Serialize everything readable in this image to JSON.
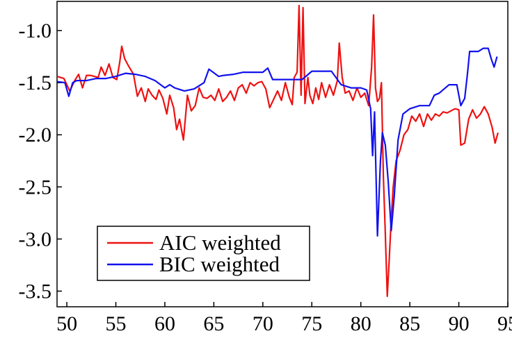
{
  "chart_data": {
    "type": "line",
    "title": "",
    "xlabel": "",
    "ylabel": "",
    "xlim": [
      49,
      95
    ],
    "ylim": [
      -3.65,
      -0.72
    ],
    "xticks": [
      50,
      55,
      60,
      65,
      70,
      75,
      80,
      85,
      90,
      95
    ],
    "yticks": [
      -1.0,
      -1.5,
      -2.0,
      -2.5,
      -3.0,
      -3.5
    ],
    "xtick_labels": [
      "50",
      "55",
      "60",
      "65",
      "70",
      "75",
      "80",
      "85",
      "90",
      "95"
    ],
    "ytick_labels": [
      "-1.0",
      "-1.5",
      "-2.0",
      "-2.5",
      "-3.0",
      "-3.5"
    ],
    "grid": false,
    "legend_position": "bottom-left",
    "series": [
      {
        "name": "AIC weighted",
        "color": "#ee1111",
        "x": [
          49.0,
          49.7,
          50.3,
          50.8,
          51.2,
          51.6,
          52.0,
          52.4,
          52.8,
          53.2,
          53.5,
          53.9,
          54.3,
          54.7,
          55.1,
          55.4,
          55.6,
          55.9,
          56.3,
          56.8,
          57.2,
          57.6,
          58.0,
          58.3,
          58.7,
          59.1,
          59.4,
          59.8,
          60.2,
          60.5,
          60.9,
          61.2,
          61.5,
          61.9,
          62.3,
          62.7,
          63.1,
          63.5,
          63.9,
          64.3,
          64.7,
          65.1,
          65.5,
          65.9,
          66.3,
          66.7,
          67.1,
          67.5,
          67.9,
          68.3,
          68.7,
          69.1,
          69.5,
          69.9,
          70.3,
          70.7,
          71.1,
          71.5,
          71.9,
          72.3,
          72.7,
          73.0,
          73.2,
          73.5,
          73.7,
          73.9,
          74.1,
          74.3,
          74.6,
          74.8,
          75.1,
          75.4,
          75.7,
          76.0,
          76.4,
          76.8,
          77.2,
          77.6,
          77.8,
          78.1,
          78.4,
          78.8,
          79.2,
          79.6,
          80.0,
          80.4,
          80.8,
          81.1,
          81.3,
          81.5,
          81.7,
          81.9,
          82.1,
          82.3,
          82.5,
          82.7,
          82.9,
          83.1,
          83.3,
          83.6,
          84.0,
          84.4,
          84.8,
          85.2,
          85.6,
          86.0,
          86.4,
          86.8,
          87.2,
          87.6,
          88.0,
          88.4,
          88.8,
          89.2,
          89.6,
          90.0,
          90.2,
          90.6,
          91.0,
          91.4,
          91.8,
          92.2,
          92.6,
          93.0,
          93.4,
          93.7,
          94.0
        ],
        "y": [
          -1.44,
          -1.46,
          -1.58,
          -1.48,
          -1.42,
          -1.55,
          -1.43,
          -1.43,
          -1.44,
          -1.45,
          -1.35,
          -1.43,
          -1.32,
          -1.45,
          -1.47,
          -1.3,
          -1.15,
          -1.27,
          -1.34,
          -1.42,
          -1.63,
          -1.55,
          -1.68,
          -1.56,
          -1.62,
          -1.66,
          -1.57,
          -1.65,
          -1.8,
          -1.62,
          -1.74,
          -1.95,
          -1.85,
          -2.05,
          -1.62,
          -1.77,
          -1.72,
          -1.55,
          -1.64,
          -1.65,
          -1.62,
          -1.67,
          -1.56,
          -1.68,
          -1.64,
          -1.58,
          -1.67,
          -1.55,
          -1.52,
          -1.6,
          -1.5,
          -1.53,
          -1.5,
          -1.49,
          -1.56,
          -1.74,
          -1.66,
          -1.58,
          -1.67,
          -1.5,
          -1.64,
          -1.71,
          -1.45,
          -1.4,
          -0.76,
          -1.62,
          -0.78,
          -1.7,
          -1.45,
          -1.62,
          -1.7,
          -1.55,
          -1.66,
          -1.5,
          -1.64,
          -1.52,
          -1.62,
          -1.48,
          -1.12,
          -1.45,
          -1.6,
          -1.58,
          -1.67,
          -1.55,
          -1.64,
          -1.6,
          -1.72,
          -1.35,
          -0.85,
          -1.55,
          -1.68,
          -1.65,
          -1.5,
          -2.4,
          -2.95,
          -3.55,
          -3.2,
          -2.8,
          -2.5,
          -2.25,
          -2.15,
          -2.0,
          -1.95,
          -1.82,
          -1.87,
          -1.8,
          -1.92,
          -1.8,
          -1.86,
          -1.8,
          -1.82,
          -1.78,
          -1.79,
          -1.77,
          -1.75,
          -1.76,
          -2.1,
          -2.08,
          -1.85,
          -1.76,
          -1.84,
          -1.8,
          -1.73,
          -1.8,
          -1.93,
          -2.08,
          -1.98
        ]
      },
      {
        "name": "BIC weighted",
        "color": "#1111ee",
        "x": [
          49.0,
          49.8,
          50.2,
          50.6,
          51.0,
          51.5,
          52.0,
          53.0,
          54.0,
          55.0,
          56.0,
          57.0,
          58.0,
          59.0,
          60.0,
          60.5,
          61.0,
          62.0,
          63.0,
          64.0,
          64.5,
          65.5,
          66.0,
          67.0,
          68.0,
          69.0,
          70.0,
          70.5,
          71.0,
          72.0,
          73.0,
          74.0,
          75.0,
          76.0,
          77.0,
          78.0,
          79.0,
          80.0,
          80.6,
          81.0,
          81.2,
          81.4,
          81.7,
          82.0,
          82.2,
          82.5,
          82.8,
          83.1,
          83.4,
          83.8,
          84.3,
          85.0,
          86.0,
          87.0,
          87.5,
          88.0,
          89.0,
          89.8,
          90.2,
          90.6,
          90.9,
          91.1,
          91.5,
          92.0,
          92.5,
          93.0,
          93.3,
          93.6,
          93.9
        ],
        "y": [
          -1.49,
          -1.5,
          -1.63,
          -1.5,
          -1.48,
          -1.48,
          -1.48,
          -1.46,
          -1.46,
          -1.44,
          -1.41,
          -1.42,
          -1.44,
          -1.48,
          -1.55,
          -1.52,
          -1.55,
          -1.58,
          -1.56,
          -1.5,
          -1.37,
          -1.44,
          -1.43,
          -1.42,
          -1.4,
          -1.4,
          -1.4,
          -1.36,
          -1.47,
          -1.47,
          -1.47,
          -1.47,
          -1.39,
          -1.39,
          -1.39,
          -1.52,
          -1.55,
          -1.55,
          -1.57,
          -1.75,
          -2.2,
          -1.78,
          -2.97,
          -2.25,
          -1.98,
          -2.1,
          -2.45,
          -2.92,
          -2.6,
          -2.05,
          -1.8,
          -1.75,
          -1.72,
          -1.72,
          -1.62,
          -1.6,
          -1.52,
          -1.52,
          -1.72,
          -1.65,
          -1.4,
          -1.2,
          -1.2,
          -1.2,
          -1.17,
          -1.17,
          -1.27,
          -1.35,
          -1.25
        ]
      }
    ]
  },
  "legend": {
    "items": [
      {
        "label": "AIC weighted",
        "color": "#ee1111"
      },
      {
        "label": "BIC weighted",
        "color": "#1111ee"
      }
    ]
  }
}
